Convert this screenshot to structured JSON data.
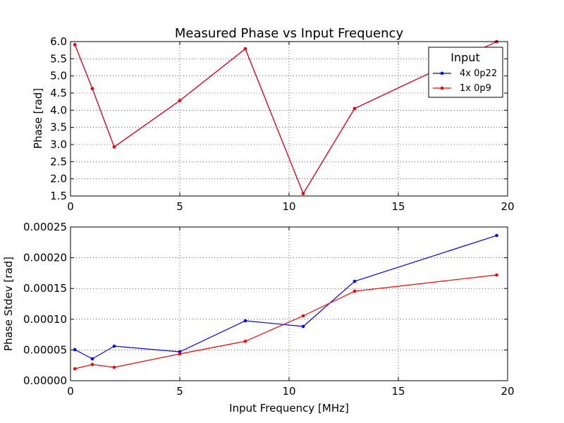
{
  "chart_data": [
    {
      "type": "line",
      "title": "Measured Phase vs Input Frequency",
      "xlabel": "",
      "ylabel": "Phase [rad]",
      "xlim": [
        0,
        20
      ],
      "ylim": [
        1.5,
        6.0
      ],
      "xticks": [
        "0",
        "5",
        "10",
        "15",
        "20"
      ],
      "xtick_values": [
        0,
        5,
        10,
        15,
        20
      ],
      "yticks": [
        "1.5",
        "2.0",
        "2.5",
        "3.0",
        "3.5",
        "4.0",
        "4.5",
        "5.0",
        "5.5",
        "6.0"
      ],
      "ytick_values": [
        1.5,
        2.0,
        2.5,
        3.0,
        3.5,
        4.0,
        4.5,
        5.0,
        5.5,
        6.0
      ],
      "grid": true,
      "legend": {
        "title": "Input",
        "placement": "top-right"
      },
      "x": [
        0.2,
        1.0,
        2.0,
        5.0,
        8.0,
        10.65,
        13.0,
        19.5
      ],
      "series": [
        {
          "name": "4x 0p22",
          "color": "#0000ff",
          "values": [
            5.91,
            4.63,
            2.93,
            4.28,
            5.79,
            1.57,
            4.05,
            6.0
          ]
        },
        {
          "name": "1x 0p9",
          "color": "#ff0000",
          "values": [
            5.91,
            4.63,
            2.93,
            4.28,
            5.79,
            1.57,
            4.05,
            6.0
          ]
        }
      ]
    },
    {
      "type": "line",
      "title": "",
      "xlabel": "Input Frequency [MHz]",
      "ylabel": "Phase Stdev [rad]",
      "xlim": [
        0,
        20
      ],
      "ylim": [
        0,
        0.00025
      ],
      "xticks": [
        "0",
        "5",
        "10",
        "15",
        "20"
      ],
      "xtick_values": [
        0,
        5,
        10,
        15,
        20
      ],
      "yticks": [
        "0.00000",
        "0.00005",
        "0.00010",
        "0.00015",
        "0.00020",
        "0.00025"
      ],
      "ytick_values": [
        0,
        5e-05,
        0.0001,
        0.00015,
        0.0002,
        0.00025
      ],
      "grid": true,
      "x": [
        0.2,
        1.0,
        2.0,
        5.0,
        8.0,
        10.65,
        13.0,
        19.5
      ],
      "series": [
        {
          "name": "4x 0p22",
          "color": "#0000ff",
          "values": [
            5.05e-05,
            3.56e-05,
            5.62e-05,
            4.7e-05,
            9.75e-05,
            8.83e-05,
            0.0001617,
            0.0002362
          ]
        },
        {
          "name": "1x 0p9",
          "color": "#ff0000",
          "values": [
            1.95e-05,
            2.64e-05,
            2.18e-05,
            4.36e-05,
            6.42e-05,
            0.0001055,
            0.0001456,
            0.000172
          ]
        }
      ]
    }
  ]
}
